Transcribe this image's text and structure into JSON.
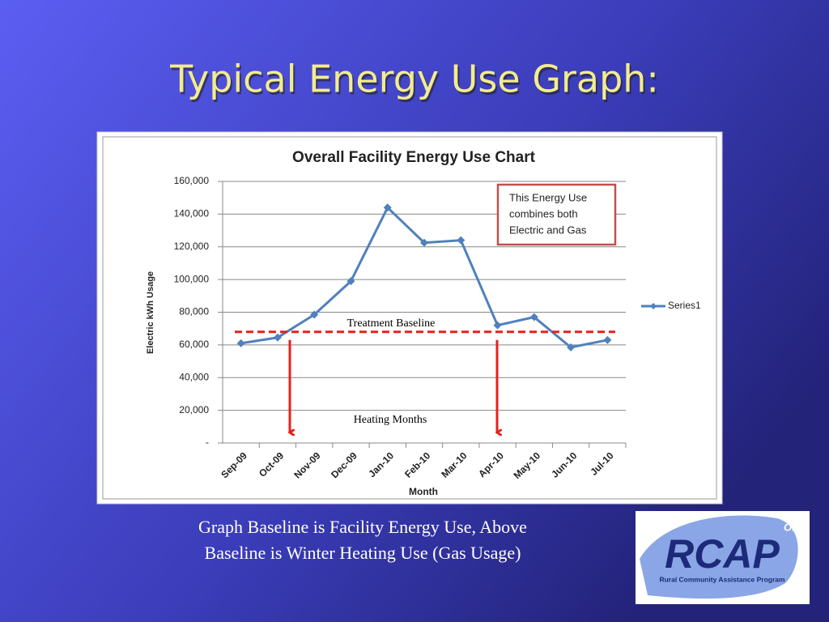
{
  "slide": {
    "title": "Typical Energy Use Graph:",
    "caption": [
      "Graph Baseline is Facility Energy Use, Above",
      "Baseline is Winter Heating Use (Gas Usage)"
    ],
    "logo": {
      "name": "RCAP",
      "state": "Ohio",
      "subtitle": "Rural Community Assistance Program"
    }
  },
  "chart_data": {
    "type": "line",
    "title": "Overall Facility Energy Use Chart",
    "x_label": "Month",
    "y_label": "Electric kWh Usage",
    "categories": [
      "Sep-09",
      "Oct-09",
      "Nov-09",
      "Dec-09",
      "Jan-10",
      "Feb-10",
      "Mar-10",
      "Apr-10",
      "May-10",
      "Jun-10",
      "Jul-10"
    ],
    "series": [
      {
        "name": "Series1",
        "color": "#4f81bd",
        "values": [
          61000,
          64500,
          78500,
          99000,
          144000,
          122500,
          124000,
          72000,
          77000,
          58500,
          63000
        ]
      }
    ],
    "ylim": [
      0,
      160000
    ],
    "yticks": [
      {
        "value": 0,
        "label": "-"
      },
      {
        "value": 20000,
        "label": "20,000"
      },
      {
        "value": 40000,
        "label": "40,000"
      },
      {
        "value": 60000,
        "label": "60,000"
      },
      {
        "value": 80000,
        "label": "80,000"
      },
      {
        "value": 100000,
        "label": "100,000"
      },
      {
        "value": 120000,
        "label": "120,000"
      },
      {
        "value": 140000,
        "label": "140,000"
      },
      {
        "value": 160000,
        "label": "160,000"
      }
    ],
    "grid": true,
    "legend": "right",
    "baseline": {
      "value": 68000,
      "label": "Treatment Baseline",
      "color": "#e8201c"
    },
    "annotations": {
      "note": [
        "This Energy Use",
        "combines both",
        "Electric and Gas"
      ],
      "heating": "Heating Months"
    }
  }
}
